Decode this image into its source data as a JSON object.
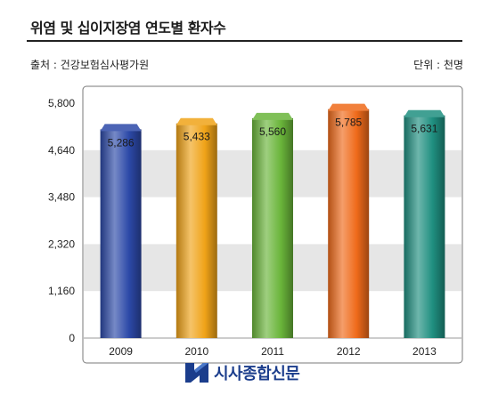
{
  "header": {
    "title": "위염 및 십이지장염 연도별 환자수",
    "source": "출처 : 건강보험심사평가원",
    "unit": "단위 : 천명"
  },
  "chart_data": {
    "type": "bar",
    "categories": [
      "2009",
      "2010",
      "2011",
      "2012",
      "2013"
    ],
    "values": [
      5286,
      5433,
      5560,
      5785,
      5631
    ],
    "value_labels": [
      "5,286",
      "5,433",
      "5,560",
      "5,785",
      "5,631"
    ],
    "yticks": [
      0,
      1160,
      2320,
      3480,
      4640,
      5800
    ],
    "ytick_labels": [
      "0",
      "1,160",
      "2,320",
      "3,480",
      "4,640",
      "5,800"
    ],
    "ylim": [
      0,
      5800
    ],
    "grid": "horizontal bands",
    "colors": [
      "#2c49a8",
      "#f0a318",
      "#6ab53a",
      "#ef6a1a",
      "#1f8f80"
    ],
    "title": "",
    "xlabel": "",
    "ylabel": ""
  },
  "logo": {
    "text": "시사종합신문",
    "icon": "newspaper-logo-icon"
  }
}
